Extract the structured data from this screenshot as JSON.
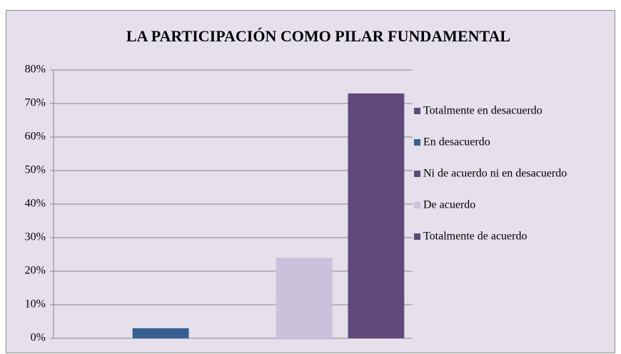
{
  "chart_data": {
    "type": "bar",
    "title": "LA PARTICIPACIÓN COMO PILAR FUNDAMENTAL",
    "categories": [
      null
    ],
    "series": [
      {
        "name": "Totalmente en desacuerdo",
        "color": "#604a7b",
        "values": [
          0
        ]
      },
      {
        "name": "En desacuerdo",
        "color": "#376092",
        "values": [
          3
        ]
      },
      {
        "name": "Ni de acuerdo ni en desacuerdo",
        "color": "#5f497a",
        "values": [
          0
        ]
      },
      {
        "name": "De acuerdo",
        "color": "#ccc1da",
        "values": [
          24
        ]
      },
      {
        "name": "Totalmente de acuerdo",
        "color": "#5f4a7b",
        "values": [
          73
        ]
      }
    ],
    "ylim": [
      0,
      80
    ],
    "yticks": [
      {
        "value": 0,
        "label": "0%"
      },
      {
        "value": 10,
        "label": "10%"
      },
      {
        "value": 20,
        "label": "20%"
      },
      {
        "value": 30,
        "label": "30%"
      },
      {
        "value": 40,
        "label": "40%"
      },
      {
        "value": 50,
        "label": "50%"
      },
      {
        "value": 60,
        "label": "60%"
      },
      {
        "value": 70,
        "label": "70%"
      },
      {
        "value": 80,
        "label": "80%"
      }
    ],
    "grid": true,
    "legend": "right"
  }
}
